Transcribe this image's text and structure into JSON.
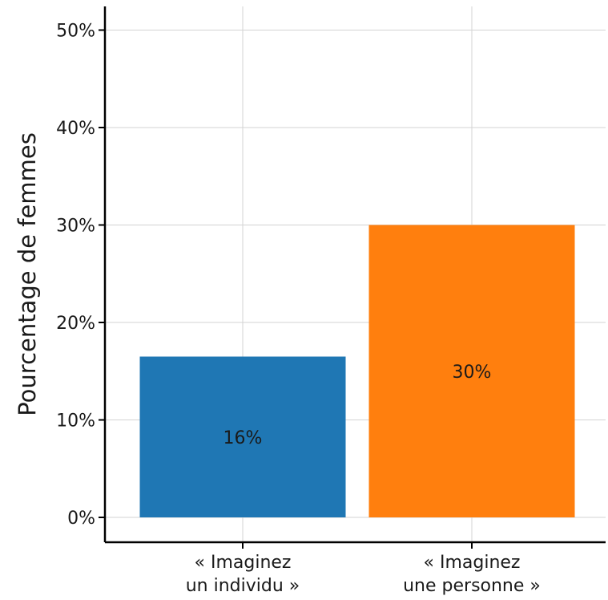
{
  "chart_data": {
    "type": "bar",
    "categories": [
      [
        "« Imaginez",
        "un individu »"
      ],
      [
        "« Imaginez",
        "une personne »"
      ]
    ],
    "values": [
      16.5,
      30
    ],
    "data_labels": [
      "16%",
      "30%"
    ],
    "colors": [
      "#1f77b4",
      "#ff7f0e"
    ],
    "title": "",
    "xlabel": "",
    "ylabel": "Pourcentage de femmes",
    "ylim": [
      0,
      52
    ],
    "yticks": [
      0,
      10,
      20,
      30,
      40,
      50
    ],
    "ytick_labels": [
      "0%",
      "10%",
      "20%",
      "30%",
      "40%",
      "50%"
    ],
    "grid": true,
    "legend": "none"
  }
}
